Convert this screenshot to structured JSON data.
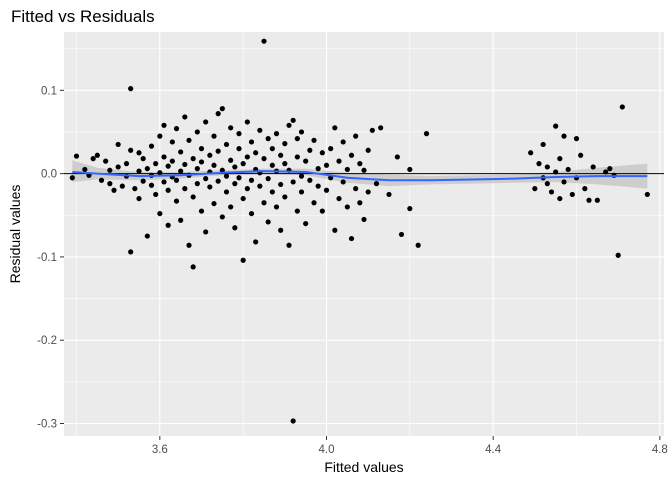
{
  "chart_data": {
    "type": "scatter",
    "title": "Fitted vs Residuals",
    "xlabel": "Fitted values",
    "ylabel": "Residual values",
    "xlim": [
      3.37,
      4.81
    ],
    "ylim": [
      -0.315,
      0.17
    ],
    "x_ticks": [
      3.6,
      4.0,
      4.4,
      4.8
    ],
    "x_tick_labels": [
      "3.6",
      "4.0",
      "4.4",
      "4.8"
    ],
    "y_ticks": [
      -0.3,
      -0.2,
      -0.1,
      0.0,
      0.1
    ],
    "y_tick_labels": [
      "-0.3",
      "-0.2",
      "-0.1",
      "0.0",
      "0.1"
    ],
    "grid": true,
    "hline": 0.0,
    "colors": {
      "panel": "#ebebeb",
      "grid": "#ffffff",
      "point": "#000000",
      "smooth_line": "#3366ff",
      "confidence_band": "#c8c8c8",
      "hline": "#000000"
    },
    "points": [
      {
        "x": 3.39,
        "y": -0.005
      },
      {
        "x": 3.4,
        "y": 0.021
      },
      {
        "x": 3.42,
        "y": 0.005
      },
      {
        "x": 3.43,
        "y": -0.002
      },
      {
        "x": 3.44,
        "y": 0.018
      },
      {
        "x": 3.45,
        "y": 0.022
      },
      {
        "x": 3.46,
        "y": -0.008
      },
      {
        "x": 3.47,
        "y": 0.015
      },
      {
        "x": 3.48,
        "y": -0.012
      },
      {
        "x": 3.48,
        "y": 0.004
      },
      {
        "x": 3.49,
        "y": -0.02
      },
      {
        "x": 3.5,
        "y": 0.008
      },
      {
        "x": 3.5,
        "y": 0.035
      },
      {
        "x": 3.51,
        "y": -0.015
      },
      {
        "x": 3.52,
        "y": 0.012
      },
      {
        "x": 3.52,
        "y": -0.003
      },
      {
        "x": 3.53,
        "y": 0.102
      },
      {
        "x": 3.53,
        "y": -0.094
      },
      {
        "x": 3.53,
        "y": 0.028
      },
      {
        "x": 3.54,
        "y": -0.018
      },
      {
        "x": 3.55,
        "y": 0.003
      },
      {
        "x": 3.55,
        "y": 0.025
      },
      {
        "x": 3.55,
        "y": -0.03
      },
      {
        "x": 3.56,
        "y": -0.009
      },
      {
        "x": 3.56,
        "y": 0.018
      },
      {
        "x": 3.57,
        "y": -0.075
      },
      {
        "x": 3.57,
        "y": 0.006
      },
      {
        "x": 3.58,
        "y": -0.014
      },
      {
        "x": 3.58,
        "y": 0.033
      },
      {
        "x": 3.58,
        "y": -0.002
      },
      {
        "x": 3.59,
        "y": 0.012
      },
      {
        "x": 3.59,
        "y": -0.025
      },
      {
        "x": 3.6,
        "y": 0.045
      },
      {
        "x": 3.6,
        "y": -0.048
      },
      {
        "x": 3.6,
        "y": 0.001
      },
      {
        "x": 3.61,
        "y": 0.02
      },
      {
        "x": 3.61,
        "y": -0.01
      },
      {
        "x": 3.61,
        "y": 0.058
      },
      {
        "x": 3.62,
        "y": -0.062
      },
      {
        "x": 3.62,
        "y": 0.009
      },
      {
        "x": 3.62,
        "y": -0.02
      },
      {
        "x": 3.63,
        "y": 0.038
      },
      {
        "x": 3.63,
        "y": -0.004
      },
      {
        "x": 3.63,
        "y": 0.015
      },
      {
        "x": 3.64,
        "y": -0.033
      },
      {
        "x": 3.64,
        "y": 0.054
      },
      {
        "x": 3.64,
        "y": -0.008
      },
      {
        "x": 3.65,
        "y": 0.026
      },
      {
        "x": 3.65,
        "y": -0.056
      },
      {
        "x": 3.65,
        "y": 0.003
      },
      {
        "x": 3.66,
        "y": 0.068
      },
      {
        "x": 3.66,
        "y": -0.018
      },
      {
        "x": 3.66,
        "y": 0.011
      },
      {
        "x": 3.67,
        "y": -0.086
      },
      {
        "x": 3.67,
        "y": 0.04
      },
      {
        "x": 3.67,
        "y": -0.002
      },
      {
        "x": 3.68,
        "y": -0.112
      },
      {
        "x": 3.68,
        "y": 0.018
      },
      {
        "x": 3.68,
        "y": -0.028
      },
      {
        "x": 3.69,
        "y": 0.05
      },
      {
        "x": 3.69,
        "y": -0.012
      },
      {
        "x": 3.69,
        "y": 0.006
      },
      {
        "x": 3.7,
        "y": 0.03
      },
      {
        "x": 3.7,
        "y": -0.045
      },
      {
        "x": 3.7,
        "y": 0.014
      },
      {
        "x": 3.71,
        "y": -0.006
      },
      {
        "x": 3.71,
        "y": 0.062
      },
      {
        "x": 3.71,
        "y": -0.07
      },
      {
        "x": 3.72,
        "y": 0.022
      },
      {
        "x": 3.72,
        "y": -0.016
      },
      {
        "x": 3.72,
        "y": 0.002
      },
      {
        "x": 3.73,
        "y": 0.045
      },
      {
        "x": 3.73,
        "y": -0.036
      },
      {
        "x": 3.73,
        "y": 0.01
      },
      {
        "x": 3.74,
        "y": 0.072
      },
      {
        "x": 3.74,
        "y": -0.009
      },
      {
        "x": 3.74,
        "y": 0.027
      },
      {
        "x": 3.75,
        "y": -0.052
      },
      {
        "x": 3.75,
        "y": 0.004
      },
      {
        "x": 3.75,
        "y": 0.078
      },
      {
        "x": 3.76,
        "y": -0.022
      },
      {
        "x": 3.76,
        "y": 0.035
      },
      {
        "x": 3.76,
        "y": -0.003
      },
      {
        "x": 3.77,
        "y": 0.016
      },
      {
        "x": 3.77,
        "y": -0.04
      },
      {
        "x": 3.77,
        "y": 0.055
      },
      {
        "x": 3.78,
        "y": -0.012
      },
      {
        "x": 3.78,
        "y": 0.008
      },
      {
        "x": 3.78,
        "y": -0.065
      },
      {
        "x": 3.79,
        "y": 0.03
      },
      {
        "x": 3.79,
        "y": -0.005
      },
      {
        "x": 3.79,
        "y": 0.048
      },
      {
        "x": 3.8,
        "y": -0.03
      },
      {
        "x": 3.8,
        "y": 0.012
      },
      {
        "x": 3.8,
        "y": -0.104
      },
      {
        "x": 3.81,
        "y": 0.02
      },
      {
        "x": 3.81,
        "y": -0.018
      },
      {
        "x": 3.81,
        "y": 0.062
      },
      {
        "x": 3.82,
        "y": -0.008
      },
      {
        "x": 3.82,
        "y": 0.038
      },
      {
        "x": 3.82,
        "y": -0.048
      },
      {
        "x": 3.83,
        "y": 0.005
      },
      {
        "x": 3.83,
        "y": -0.082
      },
      {
        "x": 3.83,
        "y": 0.025
      },
      {
        "x": 3.84,
        "y": -0.015
      },
      {
        "x": 3.84,
        "y": 0.052
      },
      {
        "x": 3.84,
        "y": 0.001
      },
      {
        "x": 3.85,
        "y": 0.159
      },
      {
        "x": 3.85,
        "y": -0.035
      },
      {
        "x": 3.85,
        "y": 0.018
      },
      {
        "x": 3.86,
        "y": -0.006
      },
      {
        "x": 3.86,
        "y": 0.042
      },
      {
        "x": 3.86,
        "y": -0.058
      },
      {
        "x": 3.87,
        "y": 0.01
      },
      {
        "x": 3.87,
        "y": -0.022
      },
      {
        "x": 3.87,
        "y": 0.03
      },
      {
        "x": 3.88,
        "y": -0.04
      },
      {
        "x": 3.88,
        "y": 0.003
      },
      {
        "x": 3.88,
        "y": 0.048
      },
      {
        "x": 3.89,
        "y": -0.013
      },
      {
        "x": 3.89,
        "y": 0.022
      },
      {
        "x": 3.89,
        "y": -0.068
      },
      {
        "x": 3.9,
        "y": 0.012
      },
      {
        "x": 3.9,
        "y": -0.028
      },
      {
        "x": 3.9,
        "y": 0.036
      },
      {
        "x": 3.91,
        "y": -0.086
      },
      {
        "x": 3.91,
        "y": 0.004
      },
      {
        "x": 3.91,
        "y": 0.058
      },
      {
        "x": 3.92,
        "y": -0.297
      },
      {
        "x": 3.92,
        "y": -0.01
      },
      {
        "x": 3.92,
        "y": 0.064
      },
      {
        "x": 3.93,
        "y": 0.02
      },
      {
        "x": 3.93,
        "y": -0.045
      },
      {
        "x": 3.93,
        "y": 0.042
      },
      {
        "x": 3.94,
        "y": -0.003
      },
      {
        "x": 3.94,
        "y": 0.05
      },
      {
        "x": 3.94,
        "y": -0.022
      },
      {
        "x": 3.95,
        "y": 0.015
      },
      {
        "x": 3.95,
        "y": -0.06
      },
      {
        "x": 3.96,
        "y": 0.028
      },
      {
        "x": 3.96,
        "y": -0.008
      },
      {
        "x": 3.97,
        "y": 0.04
      },
      {
        "x": 3.97,
        "y": -0.035
      },
      {
        "x": 3.98,
        "y": 0.006
      },
      {
        "x": 3.98,
        "y": -0.015
      },
      {
        "x": 3.99,
        "y": 0.025
      },
      {
        "x": 3.99,
        "y": -0.045
      },
      {
        "x": 4.0,
        "y": 0.01
      },
      {
        "x": 4.0,
        "y": -0.02
      },
      {
        "x": 4.01,
        "y": 0.03
      },
      {
        "x": 4.01,
        "y": -0.005
      },
      {
        "x": 4.02,
        "y": 0.055
      },
      {
        "x": 4.02,
        "y": -0.068
      },
      {
        "x": 4.03,
        "y": 0.015
      },
      {
        "x": 4.03,
        "y": -0.03
      },
      {
        "x": 4.04,
        "y": 0.038
      },
      {
        "x": 4.04,
        "y": -0.01
      },
      {
        "x": 4.05,
        "y": 0.005
      },
      {
        "x": 4.05,
        "y": -0.04
      },
      {
        "x": 4.06,
        "y": 0.022
      },
      {
        "x": 4.06,
        "y": -0.078
      },
      {
        "x": 4.07,
        "y": 0.045
      },
      {
        "x": 4.07,
        "y": -0.018
      },
      {
        "x": 4.08,
        "y": 0.012
      },
      {
        "x": 4.08,
        "y": -0.035
      },
      {
        "x": 4.09,
        "y": -0.055
      },
      {
        "x": 4.09,
        "y": 0.004
      },
      {
        "x": 4.1,
        "y": -0.022
      },
      {
        "x": 4.1,
        "y": 0.028
      },
      {
        "x": 4.11,
        "y": 0.052
      },
      {
        "x": 4.12,
        "y": -0.012
      },
      {
        "x": 4.13,
        "y": 0.055
      },
      {
        "x": 4.15,
        "y": -0.025
      },
      {
        "x": 4.17,
        "y": 0.02
      },
      {
        "x": 4.18,
        "y": -0.073
      },
      {
        "x": 4.2,
        "y": -0.042
      },
      {
        "x": 4.2,
        "y": 0.005
      },
      {
        "x": 4.22,
        "y": -0.086
      },
      {
        "x": 4.24,
        "y": 0.048
      },
      {
        "x": 4.49,
        "y": 0.025
      },
      {
        "x": 4.5,
        "y": -0.018
      },
      {
        "x": 4.51,
        "y": 0.012
      },
      {
        "x": 4.52,
        "y": -0.005
      },
      {
        "x": 4.52,
        "y": 0.035
      },
      {
        "x": 4.53,
        "y": -0.012
      },
      {
        "x": 4.53,
        "y": 0.008
      },
      {
        "x": 4.54,
        "y": -0.022
      },
      {
        "x": 4.55,
        "y": 0.057
      },
      {
        "x": 4.55,
        "y": 0.002
      },
      {
        "x": 4.56,
        "y": -0.03
      },
      {
        "x": 4.56,
        "y": 0.018
      },
      {
        "x": 4.57,
        "y": -0.01
      },
      {
        "x": 4.57,
        "y": 0.045
      },
      {
        "x": 4.58,
        "y": 0.005
      },
      {
        "x": 4.59,
        "y": -0.025
      },
      {
        "x": 4.6,
        "y": 0.042
      },
      {
        "x": 4.6,
        "y": -0.005
      },
      {
        "x": 4.61,
        "y": 0.022
      },
      {
        "x": 4.62,
        "y": -0.018
      },
      {
        "x": 4.63,
        "y": -0.032
      },
      {
        "x": 4.64,
        "y": 0.008
      },
      {
        "x": 4.65,
        "y": -0.032
      },
      {
        "x": 4.67,
        "y": 0.002
      },
      {
        "x": 4.68,
        "y": 0.006
      },
      {
        "x": 4.69,
        "y": -0.002
      },
      {
        "x": 4.7,
        "y": -0.098
      },
      {
        "x": 4.71,
        "y": 0.08
      },
      {
        "x": 4.77,
        "y": -0.025
      }
    ],
    "smooth_line": [
      {
        "x": 3.39,
        "y": 0.002
      },
      {
        "x": 3.45,
        "y": 0.0
      },
      {
        "x": 3.55,
        "y": -0.003
      },
      {
        "x": 3.65,
        "y": -0.002
      },
      {
        "x": 3.75,
        "y": 0.001
      },
      {
        "x": 3.85,
        "y": 0.003
      },
      {
        "x": 3.95,
        "y": 0.002
      },
      {
        "x": 4.05,
        "y": -0.005
      },
      {
        "x": 4.15,
        "y": -0.008
      },
      {
        "x": 4.25,
        "y": -0.008
      },
      {
        "x": 4.35,
        "y": -0.007
      },
      {
        "x": 4.45,
        "y": -0.006
      },
      {
        "x": 4.55,
        "y": -0.004
      },
      {
        "x": 4.65,
        "y": -0.003
      },
      {
        "x": 4.77,
        "y": -0.003
      }
    ],
    "smooth_band": [
      {
        "x": 3.39,
        "lo": -0.01,
        "hi": 0.016
      },
      {
        "x": 3.45,
        "lo": -0.007,
        "hi": 0.007
      },
      {
        "x": 3.55,
        "lo": -0.008,
        "hi": 0.002
      },
      {
        "x": 3.65,
        "lo": -0.006,
        "hi": 0.002
      },
      {
        "x": 3.75,
        "lo": -0.002,
        "hi": 0.004
      },
      {
        "x": 3.85,
        "lo": 0.0,
        "hi": 0.006
      },
      {
        "x": 3.95,
        "lo": -0.002,
        "hi": 0.006
      },
      {
        "x": 4.05,
        "lo": -0.011,
        "hi": 0.001
      },
      {
        "x": 4.15,
        "lo": -0.015,
        "hi": -0.001
      },
      {
        "x": 4.25,
        "lo": -0.013,
        "hi": -0.003
      },
      {
        "x": 4.35,
        "lo": -0.012,
        "hi": -0.002
      },
      {
        "x": 4.45,
        "lo": -0.011,
        "hi": -0.001
      },
      {
        "x": 4.55,
        "lo": -0.01,
        "hi": 0.002
      },
      {
        "x": 4.65,
        "lo": -0.013,
        "hi": 0.007
      },
      {
        "x": 4.77,
        "lo": -0.018,
        "hi": 0.012
      }
    ]
  }
}
